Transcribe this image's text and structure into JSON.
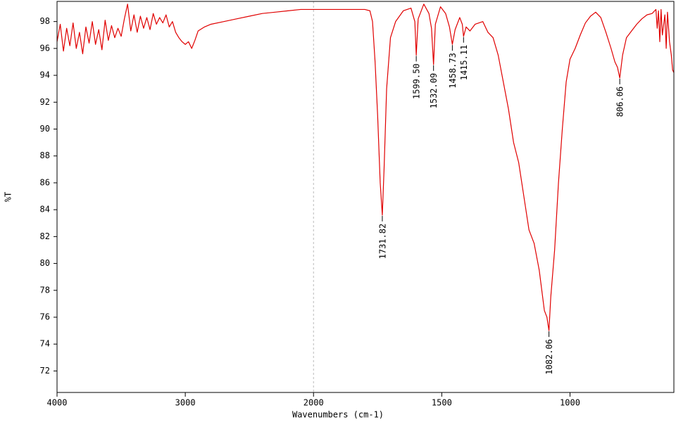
{
  "chart_data": {
    "type": "line",
    "xlabel": "Wavenumbers (cm-1)",
    "ylabel": "%T",
    "color": "#e00000",
    "x": [
      4000,
      3975,
      3950,
      3925,
      3900,
      3875,
      3850,
      3825,
      3800,
      3775,
      3750,
      3725,
      3700,
      3675,
      3650,
      3625,
      3600,
      3575,
      3550,
      3525,
      3500,
      3475,
      3450,
      3425,
      3400,
      3375,
      3350,
      3325,
      3300,
      3275,
      3250,
      3225,
      3200,
      3175,
      3150,
      3125,
      3100,
      3075,
      3050,
      3025,
      3000,
      2975,
      2950,
      2925,
      2900,
      2850,
      2800,
      2700,
      2600,
      2500,
      2400,
      2300,
      2200,
      2100,
      2000,
      1900,
      1800,
      1780,
      1770,
      1760,
      1750,
      1740,
      1731.82,
      1725,
      1715,
      1700,
      1680,
      1650,
      1620,
      1605,
      1599.5,
      1592,
      1570,
      1550,
      1540,
      1532.09,
      1525,
      1505,
      1485,
      1470,
      1458.73,
      1448,
      1430,
      1420,
      1415.11,
      1405,
      1390,
      1370,
      1340,
      1320,
      1300,
      1280,
      1260,
      1240,
      1220,
      1200,
      1180,
      1160,
      1140,
      1120,
      1100,
      1090,
      1082.06,
      1075,
      1060,
      1045,
      1030,
      1015,
      1000,
      980,
      960,
      940,
      920,
      900,
      880,
      860,
      840,
      825,
      815,
      806.06,
      795,
      780,
      760,
      740,
      720,
      700,
      680,
      665,
      660,
      655,
      650,
      645,
      640,
      630,
      625,
      620,
      612,
      605,
      600,
      595
    ],
    "values": [
      96.5,
      97.8,
      95.8,
      97.5,
      96.2,
      97.9,
      96.0,
      97.2,
      95.6,
      97.6,
      96.4,
      98.0,
      96.3,
      97.4,
      95.9,
      98.1,
      96.6,
      97.7,
      96.8,
      97.5,
      96.9,
      98.2,
      99.3,
      97.3,
      98.5,
      97.2,
      98.4,
      97.5,
      98.3,
      97.4,
      98.6,
      97.8,
      98.3,
      97.9,
      98.5,
      97.6,
      98.0,
      97.2,
      96.8,
      96.5,
      96.3,
      96.5,
      96.0,
      96.6,
      97.3,
      97.6,
      97.8,
      98.0,
      98.2,
      98.4,
      98.6,
      98.7,
      98.8,
      98.9,
      98.9,
      98.9,
      98.9,
      98.8,
      98.0,
      95.0,
      91.0,
      86.0,
      83.6,
      87.0,
      93.0,
      96.8,
      98.0,
      98.8,
      99.0,
      98.0,
      95.5,
      98.2,
      99.3,
      98.6,
      97.5,
      94.8,
      97.8,
      99.1,
      98.6,
      97.6,
      96.3,
      97.4,
      98.3,
      97.8,
      96.9,
      97.6,
      97.3,
      97.8,
      98.0,
      97.2,
      96.8,
      95.5,
      93.5,
      91.5,
      89.0,
      87.5,
      85.0,
      82.5,
      81.5,
      79.5,
      76.5,
      76.0,
      75.0,
      77.5,
      81.0,
      86.0,
      90.0,
      93.5,
      95.2,
      96.0,
      97.0,
      97.9,
      98.4,
      98.7,
      98.3,
      97.2,
      96.0,
      95.0,
      94.6,
      93.8,
      95.5,
      96.8,
      97.3,
      97.8,
      98.2,
      98.5,
      98.6,
      98.9,
      97.5,
      98.8,
      96.5,
      98.9,
      97.0,
      98.5,
      96.0,
      98.7,
      96.5,
      95.5,
      94.4,
      94.2
    ],
    "peaks": [
      {
        "x": 1731.82,
        "y": 83.6,
        "label": "1731.82"
      },
      {
        "x": 1599.5,
        "y": 95.5,
        "label": "1599.50"
      },
      {
        "x": 1532.09,
        "y": 94.8,
        "label": "1532.09"
      },
      {
        "x": 1458.73,
        "y": 96.3,
        "label": "1458.73"
      },
      {
        "x": 1415.11,
        "y": 96.9,
        "label": "1415.11"
      },
      {
        "x": 1082.06,
        "y": 75.0,
        "label": "1082.06"
      },
      {
        "x": 806.06,
        "y": 93.8,
        "label": "806.06"
      }
    ],
    "xlim": [
      4000,
      595
    ],
    "ylim": [
      70.4,
      99.5
    ],
    "x_scale_change": {
      "at": 2000,
      "factor": 2
    },
    "xticks": [
      4000,
      3000,
      2000,
      1500,
      1000
    ],
    "yticks": [
      72,
      74,
      76,
      78,
      80,
      82,
      84,
      86,
      88,
      90,
      92,
      94,
      96,
      98
    ]
  }
}
